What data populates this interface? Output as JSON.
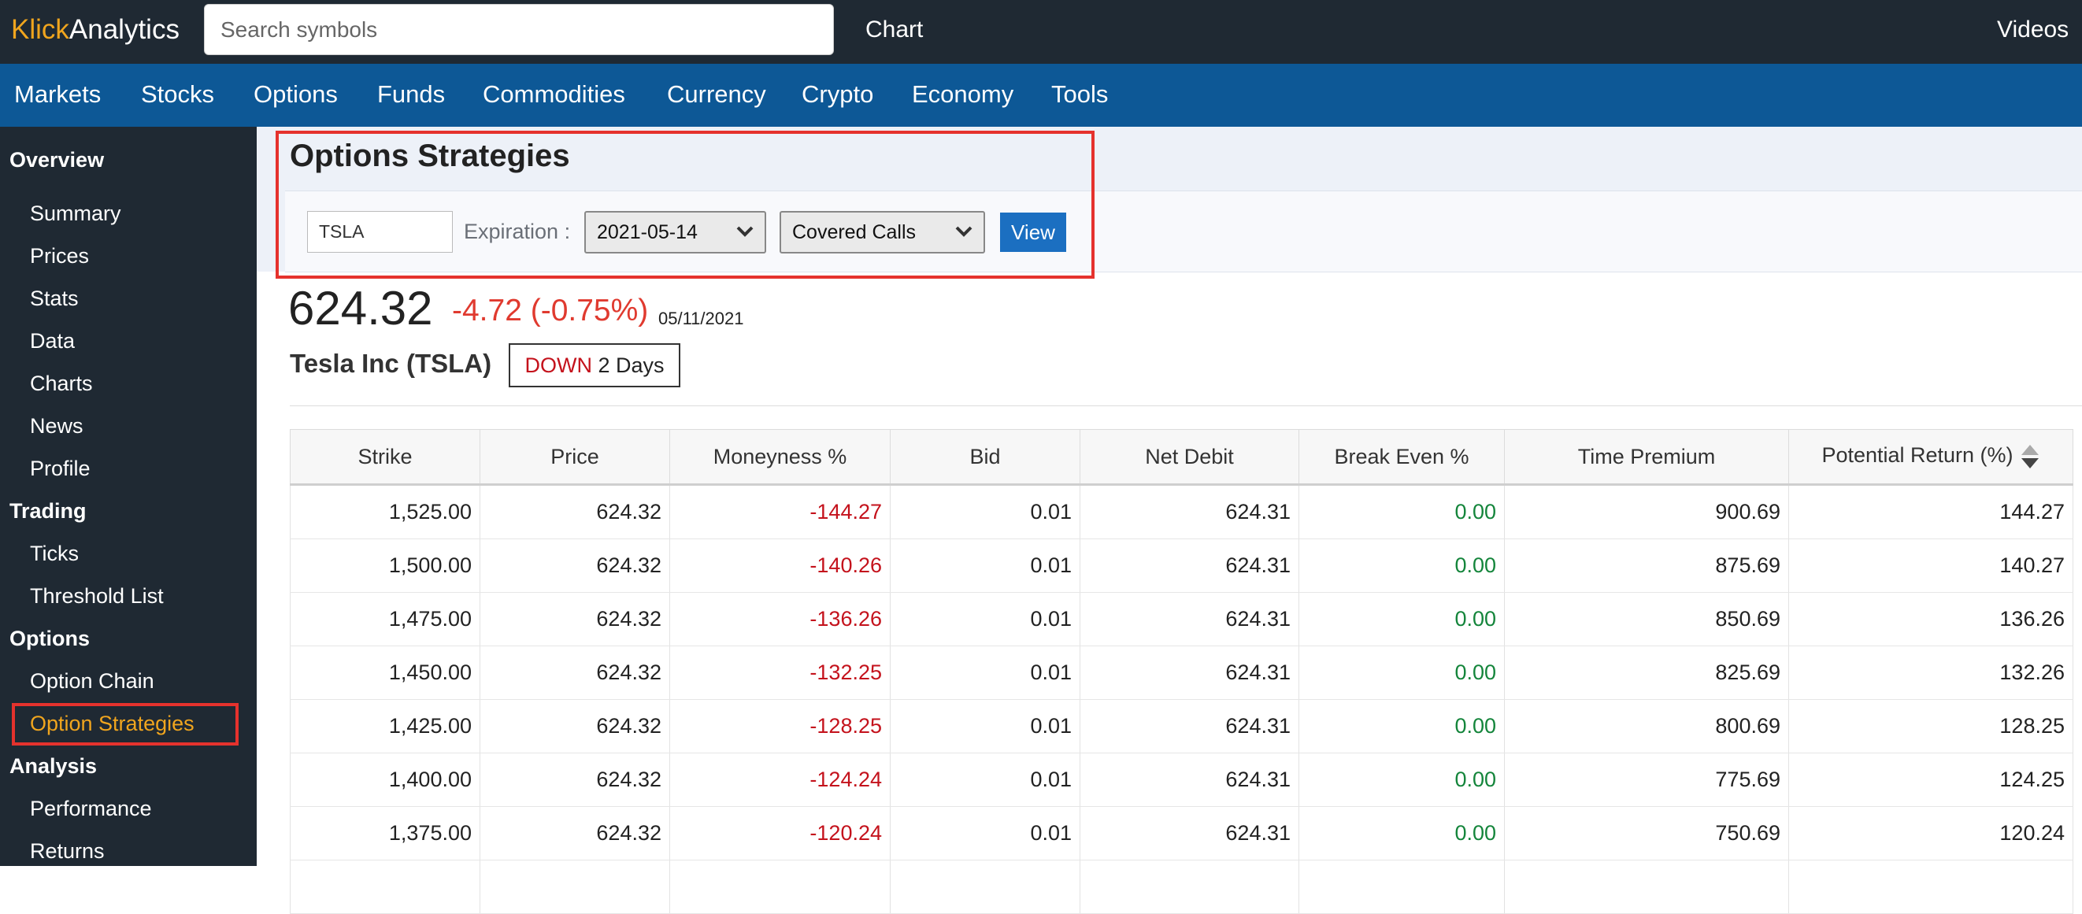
{
  "header": {
    "logo_part1": "Klick",
    "logo_part2": "Analytics",
    "search_placeholder": "Search symbols",
    "chart_link": "Chart",
    "videos_link": "Videos"
  },
  "nav": [
    "Markets",
    "Stocks",
    "Options",
    "Funds",
    "Commodities",
    "Currency",
    "Crypto",
    "Economy",
    "Tools"
  ],
  "sidebar": {
    "sections": [
      {
        "heading": "Overview",
        "items": [
          "Summary",
          "Prices",
          "Stats",
          "Data",
          "Charts",
          "News",
          "Profile"
        ]
      },
      {
        "heading": "Trading",
        "items": [
          "Ticks",
          "Threshold List"
        ]
      },
      {
        "heading": "Options",
        "items": [
          "Option Chain",
          "Option Strategies"
        ]
      },
      {
        "heading": "Analysis",
        "items": [
          "Performance",
          "Returns"
        ]
      }
    ],
    "active_item": "Option Strategies"
  },
  "strategy": {
    "title": "Options Strategies",
    "symbol_value": "TSLA",
    "expiration_label": "Expiration :",
    "expiration_value": "2021-05-14",
    "strategy_value": "Covered Calls",
    "view_button": "View"
  },
  "quote": {
    "price": "624.32",
    "change": "-4.72 (-0.75%)",
    "date": "05/11/2021",
    "company": "Tesla Inc (TSLA)",
    "trend_word": "DOWN",
    "trend_days": "2 Days"
  },
  "colors": {
    "accent": "#f0a51e",
    "nav_blue": "#0d5896",
    "negative": "#c4121c",
    "positive": "#14853b",
    "highlight_box": "#e5322d"
  },
  "table": {
    "columns": [
      "Strike",
      "Price",
      "Moneyness %",
      "Bid",
      "Net Debit",
      "Break Even %",
      "Time Premium",
      "Potential Return (%)"
    ],
    "rows": [
      [
        "1,525.00",
        "624.32",
        "-144.27",
        "0.01",
        "624.31",
        "0.00",
        "900.69",
        "144.27"
      ],
      [
        "1,500.00",
        "624.32",
        "-140.26",
        "0.01",
        "624.31",
        "0.00",
        "875.69",
        "140.27"
      ],
      [
        "1,475.00",
        "624.32",
        "-136.26",
        "0.01",
        "624.31",
        "0.00",
        "850.69",
        "136.26"
      ],
      [
        "1,450.00",
        "624.32",
        "-132.25",
        "0.01",
        "624.31",
        "0.00",
        "825.69",
        "132.26"
      ],
      [
        "1,425.00",
        "624.32",
        "-128.25",
        "0.01",
        "624.31",
        "0.00",
        "800.69",
        "128.25"
      ],
      [
        "1,400.00",
        "624.32",
        "-124.24",
        "0.01",
        "624.31",
        "0.00",
        "775.69",
        "124.25"
      ],
      [
        "1,375.00",
        "624.32",
        "-120.24",
        "0.01",
        "624.31",
        "0.00",
        "750.69",
        "120.24"
      ],
      [
        "",
        "",
        "",
        "",
        "",
        "",
        "",
        ""
      ]
    ]
  }
}
